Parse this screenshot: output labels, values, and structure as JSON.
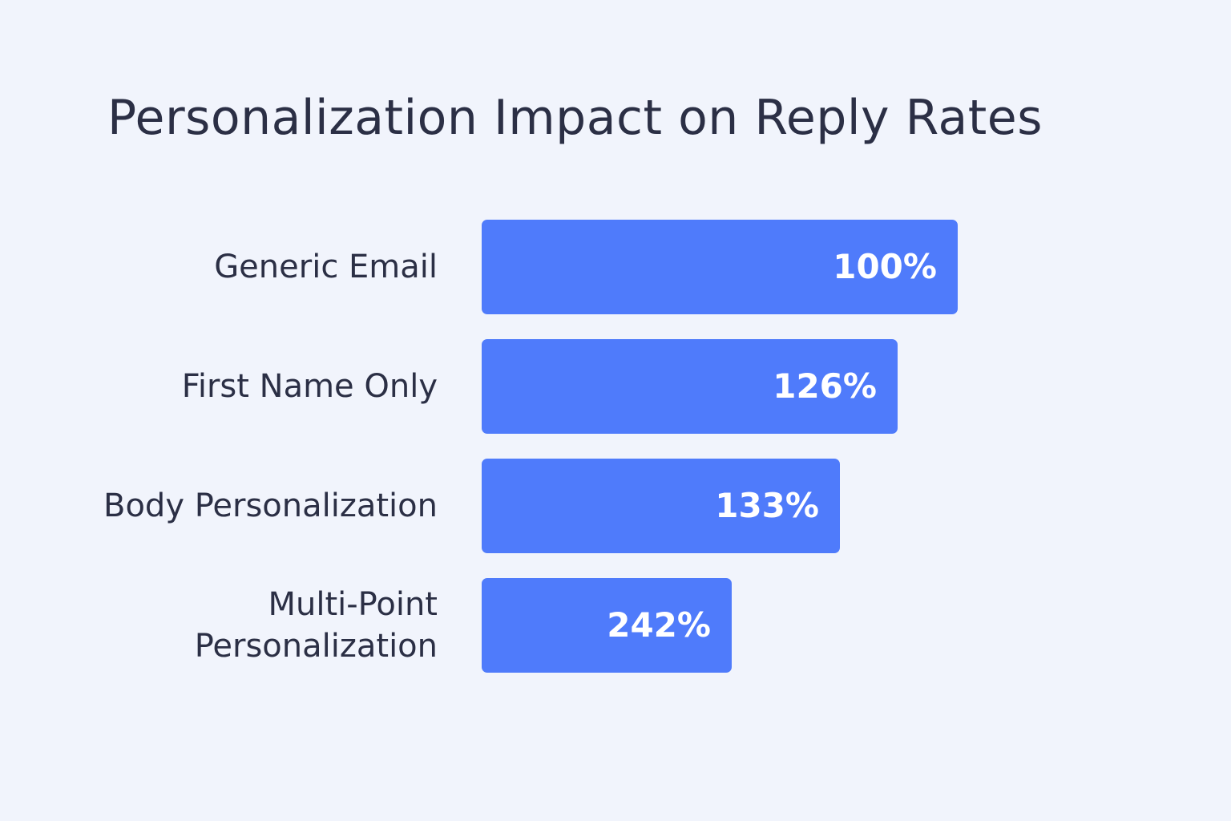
{
  "chart_data": {
    "type": "bar",
    "orientation": "horizontal",
    "title": "Personalization Impact on Reply Rates",
    "categories": [
      "Generic Email",
      "First Name Only",
      "Body Personalization",
      "Multi-Point\nPersonalization"
    ],
    "values": [
      100,
      126,
      133,
      242
    ],
    "value_labels": [
      "100%",
      "126%",
      "133%",
      "242%"
    ],
    "unit": "%",
    "grid": false,
    "bar_color": "#4f7bfb",
    "background_color": "#f1f4fc",
    "text_color": "#2b2f45"
  }
}
